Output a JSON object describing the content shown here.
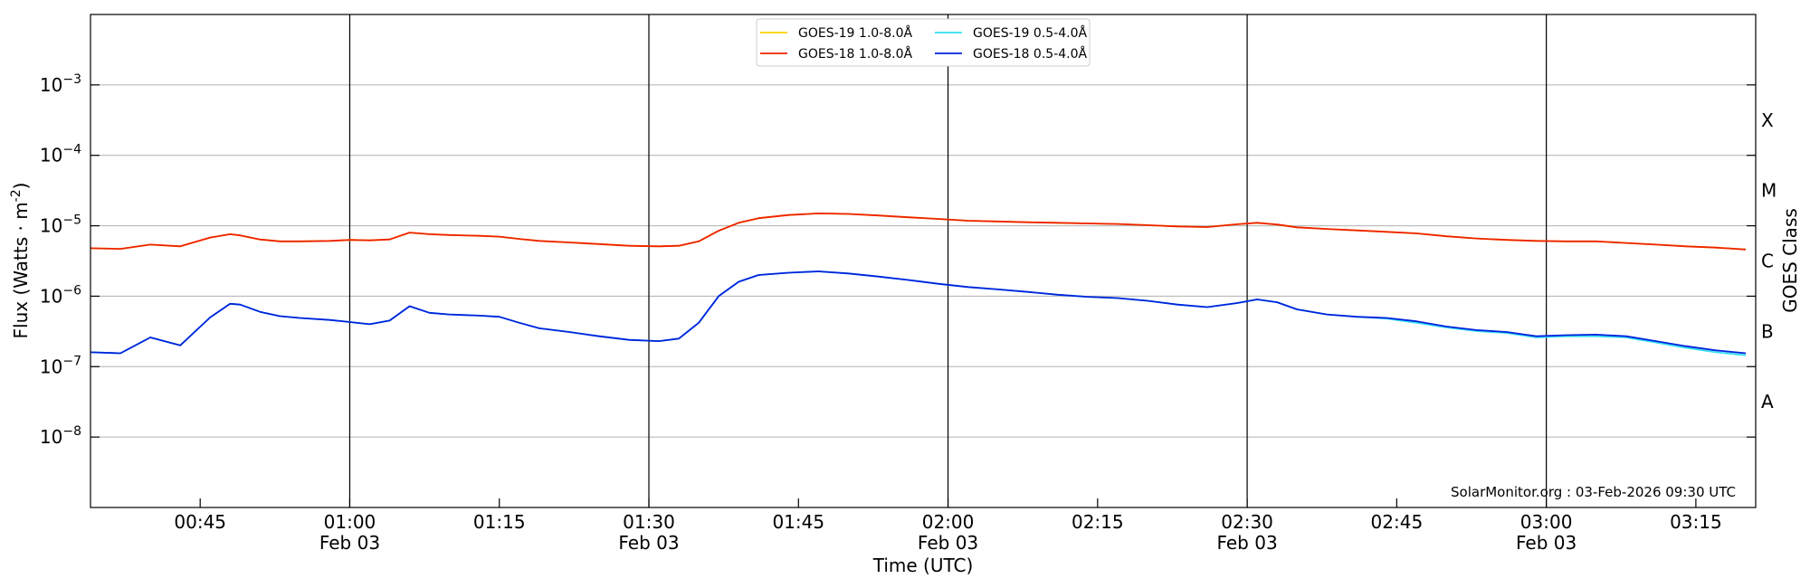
{
  "chart_data": {
    "type": "line",
    "xlabel": "Time (UTC)",
    "ylabel": "Flux (Watts · m",
    "ylabel_sup": "-2",
    "ylabel_close": ")",
    "y2label": "GOES Class",
    "yscale": "log",
    "xlim": [
      "00:34",
      "03:21"
    ],
    "ylim": [
      1e-09,
      0.01
    ],
    "grid": "horizontal",
    "legend_placement": "upper-center",
    "credit": "SolarMonitor.org : 03-Feb-2026 09:30 UTC",
    "x_ticks": [
      {
        "time": "00:45",
        "label": "00:45",
        "sub": ""
      },
      {
        "time": "01:00",
        "label": "01:00",
        "sub": "Feb 03"
      },
      {
        "time": "01:15",
        "label": "01:15",
        "sub": ""
      },
      {
        "time": "01:30",
        "label": "01:30",
        "sub": "Feb 03"
      },
      {
        "time": "01:45",
        "label": "01:45",
        "sub": ""
      },
      {
        "time": "02:00",
        "label": "02:00",
        "sub": "Feb 03"
      },
      {
        "time": "02:15",
        "label": "02:15",
        "sub": ""
      },
      {
        "time": "02:30",
        "label": "02:30",
        "sub": "Feb 03"
      },
      {
        "time": "02:45",
        "label": "02:45",
        "sub": ""
      },
      {
        "time": "03:00",
        "label": "03:00",
        "sub": "Feb 03"
      },
      {
        "time": "03:15",
        "label": "03:15",
        "sub": ""
      }
    ],
    "vertical_lines": [
      "01:00",
      "01:30",
      "02:00",
      "02:30",
      "03:00"
    ],
    "y_ticks": [
      {
        "value": 1e-08,
        "base": "10",
        "exp": "−8"
      },
      {
        "value": 1e-07,
        "base": "10",
        "exp": "−7"
      },
      {
        "value": 1e-06,
        "base": "10",
        "exp": "−6"
      },
      {
        "value": 1e-05,
        "base": "10",
        "exp": "−5"
      },
      {
        "value": 0.0001,
        "base": "10",
        "exp": "−4"
      },
      {
        "value": 0.001,
        "base": "10",
        "exp": "−3"
      }
    ],
    "classes": [
      {
        "label": "A",
        "value": 3.16e-08
      },
      {
        "label": "B",
        "value": 3.16e-07
      },
      {
        "label": "C",
        "value": 3.16e-06
      },
      {
        "label": "M",
        "value": 3.16e-05
      },
      {
        "label": "X",
        "value": 0.000316
      }
    ],
    "x": [
      "00:34",
      "00:37",
      "00:40",
      "00:43",
      "00:46",
      "00:48",
      "00:49",
      "00:51",
      "00:53",
      "00:55",
      "00:58",
      "01:00",
      "01:02",
      "01:04",
      "01:06",
      "01:08",
      "01:10",
      "01:13",
      "01:15",
      "01:17",
      "01:19",
      "01:22",
      "01:25",
      "01:28",
      "01:31",
      "01:33",
      "01:35",
      "01:37",
      "01:39",
      "01:41",
      "01:44",
      "01:47",
      "01:50",
      "01:53",
      "01:56",
      "01:59",
      "02:02",
      "02:05",
      "02:08",
      "02:11",
      "02:14",
      "02:17",
      "02:20",
      "02:23",
      "02:26",
      "02:29",
      "02:31",
      "02:33",
      "02:35",
      "02:38",
      "02:41",
      "02:44",
      "02:47",
      "02:50",
      "02:53",
      "02:56",
      "02:59",
      "03:02",
      "03:05",
      "03:08",
      "03:11",
      "03:14",
      "03:17",
      "03:20"
    ],
    "series": [
      {
        "name": "GOES-19 1.0-8.0Å",
        "color": "#ffd200",
        "values": [
          4.8e-06,
          4.7e-06,
          5.4e-06,
          5.1e-06,
          6.8e-06,
          7.6e-06,
          7.3e-06,
          6.4e-06,
          6e-06,
          6e-06,
          6.1e-06,
          6.3e-06,
          6.2e-06,
          6.4e-06,
          8e-06,
          7.6e-06,
          7.4e-06,
          7.2e-06,
          7e-06,
          6.5e-06,
          6.1e-06,
          5.8e-06,
          5.5e-06,
          5.2e-06,
          5.1e-06,
          5.2e-06,
          6e-06,
          8.5e-06,
          1.1e-05,
          1.28e-05,
          1.42e-05,
          1.5e-05,
          1.47e-05,
          1.4e-05,
          1.32e-05,
          1.25e-05,
          1.18e-05,
          1.15e-05,
          1.12e-05,
          1.1e-05,
          1.08e-05,
          1.06e-05,
          1.02e-05,
          9.8e-06,
          9.6e-06,
          1.05e-05,
          1.1e-05,
          1.04e-05,
          9.5e-06,
          9e-06,
          8.6e-06,
          8.2e-06,
          7.8e-06,
          7.1e-06,
          6.6e-06,
          6.3e-06,
          6.1e-06,
          6e-06,
          6e-06,
          5.7e-06,
          5.4e-06,
          5.1e-06,
          4.9e-06,
          4.6e-06
        ]
      },
      {
        "name": "GOES-18 1.0-8.0Å",
        "color": "#ee2200",
        "values": [
          4.8e-06,
          4.7e-06,
          5.4e-06,
          5.1e-06,
          6.8e-06,
          7.6e-06,
          7.3e-06,
          6.4e-06,
          6e-06,
          6e-06,
          6.1e-06,
          6.3e-06,
          6.2e-06,
          6.4e-06,
          8e-06,
          7.6e-06,
          7.4e-06,
          7.2e-06,
          7e-06,
          6.5e-06,
          6.1e-06,
          5.8e-06,
          5.5e-06,
          5.2e-06,
          5.1e-06,
          5.2e-06,
          6e-06,
          8.5e-06,
          1.1e-05,
          1.28e-05,
          1.42e-05,
          1.5e-05,
          1.47e-05,
          1.4e-05,
          1.32e-05,
          1.25e-05,
          1.18e-05,
          1.15e-05,
          1.12e-05,
          1.1e-05,
          1.08e-05,
          1.06e-05,
          1.02e-05,
          9.8e-06,
          9.6e-06,
          1.05e-05,
          1.1e-05,
          1.04e-05,
          9.5e-06,
          9e-06,
          8.6e-06,
          8.2e-06,
          7.8e-06,
          7.1e-06,
          6.6e-06,
          6.3e-06,
          6.1e-06,
          6e-06,
          6e-06,
          5.7e-06,
          5.4e-06,
          5.1e-06,
          4.9e-06,
          4.6e-06
        ]
      },
      {
        "name": "GOES-19 0.5-4.0Å",
        "color": "#33e0f0",
        "values": [
          1.6e-07,
          1.55e-07,
          2.6e-07,
          2e-07,
          5e-07,
          7.8e-07,
          7.6e-07,
          6e-07,
          5.2e-07,
          4.9e-07,
          4.6e-07,
          4.3e-07,
          4e-07,
          4.5e-07,
          7.2e-07,
          5.8e-07,
          5.5e-07,
          5.3e-07,
          5.1e-07,
          4.2e-07,
          3.5e-07,
          3.1e-07,
          2.7e-07,
          2.4e-07,
          2.3e-07,
          2.5e-07,
          4.2e-07,
          1e-06,
          1.6e-06,
          2e-06,
          2.15e-06,
          2.25e-06,
          2.1e-06,
          1.9e-06,
          1.7e-06,
          1.5e-06,
          1.35e-06,
          1.25e-06,
          1.15e-06,
          1.05e-06,
          9.8e-07,
          9.4e-07,
          8.6e-07,
          7.6e-07,
          7e-07,
          8e-07,
          9e-07,
          8.2e-07,
          6.5e-07,
          5.5e-07,
          5.1e-07,
          4.8e-07,
          4.2e-07,
          3.6e-07,
          3.2e-07,
          3e-07,
          2.6e-07,
          2.7e-07,
          2.7e-07,
          2.6e-07,
          2.2e-07,
          1.85e-07,
          1.6e-07,
          1.45e-07
        ]
      },
      {
        "name": "GOES-18 0.5-4.0Å",
        "color": "#0022dd",
        "values": [
          1.6e-07,
          1.55e-07,
          2.6e-07,
          2e-07,
          5e-07,
          7.8e-07,
          7.6e-07,
          6e-07,
          5.2e-07,
          4.9e-07,
          4.6e-07,
          4.3e-07,
          4e-07,
          4.5e-07,
          7.2e-07,
          5.8e-07,
          5.5e-07,
          5.3e-07,
          5.1e-07,
          4.2e-07,
          3.5e-07,
          3.1e-07,
          2.7e-07,
          2.4e-07,
          2.3e-07,
          2.5e-07,
          4.2e-07,
          1e-06,
          1.6e-06,
          2e-06,
          2.15e-06,
          2.25e-06,
          2.1e-06,
          1.9e-06,
          1.7e-06,
          1.5e-06,
          1.35e-06,
          1.25e-06,
          1.15e-06,
          1.05e-06,
          9.8e-07,
          9.4e-07,
          8.6e-07,
          7.6e-07,
          7e-07,
          8e-07,
          9e-07,
          8.2e-07,
          6.5e-07,
          5.5e-07,
          5.1e-07,
          4.9e-07,
          4.4e-07,
          3.7e-07,
          3.3e-07,
          3.1e-07,
          2.7e-07,
          2.8e-07,
          2.85e-07,
          2.7e-07,
          2.3e-07,
          1.95e-07,
          1.7e-07,
          1.55e-07
        ]
      }
    ],
    "legend_order": [
      0,
      2,
      1,
      3
    ]
  }
}
